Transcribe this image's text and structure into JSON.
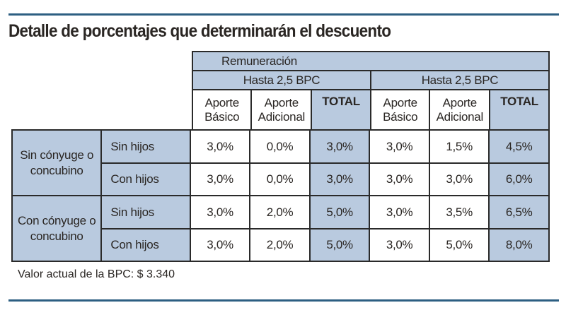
{
  "title": "Detalle de porcentajes que determinarán el descuento",
  "header": {
    "remuneracion": "Remuneración",
    "group1": "Hasta 2,5 BPC",
    "group2": "Hasta 2,5 BPC",
    "cols": [
      "Aporte Básico",
      "Aporte Adicional",
      "TOTAL",
      "Aporte Básico",
      "Aporte Adicional",
      "TOTAL"
    ]
  },
  "rows": [
    {
      "group": "Sin cónyuge o concubino",
      "sub": "Sin hijos",
      "values": [
        "3,0%",
        "0,0%",
        "3,0%",
        "3,0%",
        "1,5%",
        "4,5%"
      ]
    },
    {
      "sub": "Con hijos",
      "values": [
        "3,0%",
        "0,0%",
        "3,0%",
        "3,0%",
        "3,0%",
        "6,0%"
      ]
    },
    {
      "group": "Con cónyuge o concubino",
      "sub": "Sin hijos",
      "values": [
        "3,0%",
        "2,0%",
        "5,0%",
        "3,0%",
        "3,5%",
        "6,5%"
      ]
    },
    {
      "sub": "Con hijos",
      "values": [
        "3,0%",
        "2,0%",
        "5,0%",
        "3,0%",
        "5,0%",
        "8,0%"
      ]
    }
  ],
  "note": "Valor actual de la BPC: $ 3.340"
}
